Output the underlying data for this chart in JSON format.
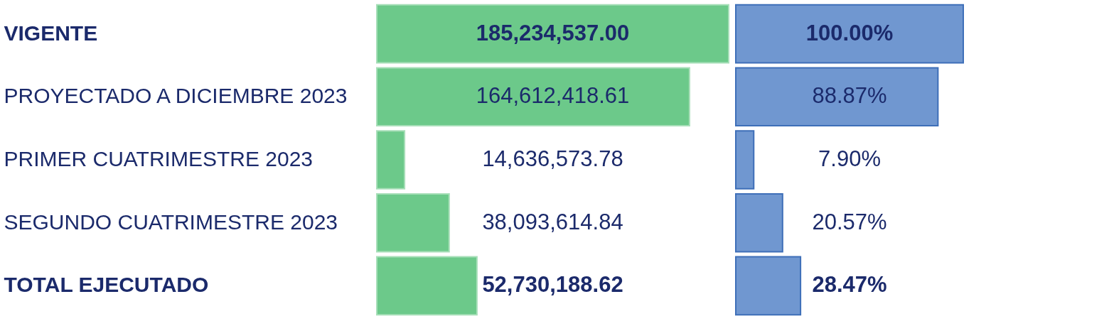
{
  "chart_data": [
    {
      "type": "bar",
      "orientation": "horizontal",
      "categories": [
        "VIGENTE",
        "PROYECTADO A DICIEMBRE 2023",
        "PRIMER CUATRIMESTRE 2023",
        "SEGUNDO CUATRIMESTRE 2023",
        "TOTAL EJECUTADO"
      ],
      "values": [
        185234537.0,
        164612418.61,
        14636573.78,
        38093614.84,
        52730188.62
      ],
      "value_labels": [
        "185,234,537.00",
        "164,612,418.61",
        "14,636,573.78",
        "38,093,614.84",
        "52,730,188.62"
      ],
      "color": "#6cc98a",
      "tick_labels": "y"
    },
    {
      "type": "bar",
      "orientation": "horizontal",
      "categories": [
        null,
        null,
        null,
        null,
        null
      ],
      "values": [
        100.0,
        88.87,
        7.9,
        20.57,
        28.47
      ],
      "value_labels": [
        "100.00%",
        "88.87%",
        "7.90%",
        "20.57%",
        "28.47%"
      ],
      "color": "#7097d0",
      "tick_labels": false
    }
  ]
}
